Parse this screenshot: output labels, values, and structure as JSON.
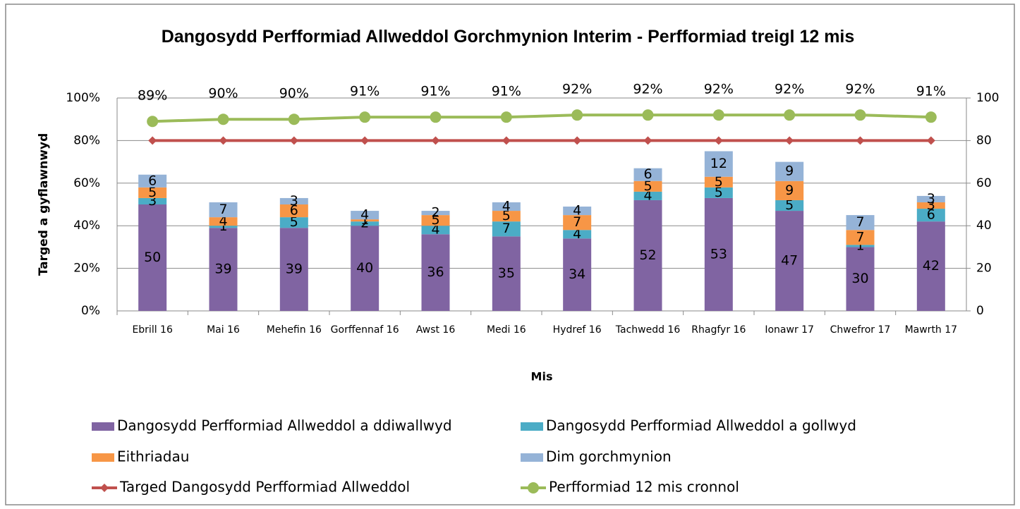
{
  "chart_data": {
    "type": "bar",
    "title": "Dangosydd Perfformiad Allweddol Gorchmynion Interim - Perfformiad treigl 12 mis",
    "y_label": "Targed a gyflawnwyd",
    "x_label": "Mis",
    "stacked": true,
    "grid": true,
    "legend": "bottom",
    "categories": [
      "Ebrill 16",
      "Mai 16",
      "Mehefin 16",
      "Gorffennaf 16",
      "Awst 16",
      "Medi 16",
      "Hydref 16",
      "Tachwedd 16",
      "Rhagfyr 16",
      "Ionawr 17",
      "Chwefror 17",
      "Mawrth 17"
    ],
    "ylim": [
      0,
      100
    ],
    "yticks": [
      {
        "value": 0,
        "label": "0%"
      },
      {
        "value": 20,
        "label": "20%"
      },
      {
        "value": 40,
        "label": "40%"
      },
      {
        "value": 60,
        "label": "60%"
      },
      {
        "value": 80,
        "label": "80%"
      },
      {
        "value": 100,
        "label": "100%"
      }
    ],
    "y2lim": [
      0,
      100
    ],
    "y2ticks": [
      0,
      20,
      40,
      60,
      80,
      100
    ],
    "series": [
      {
        "name": "Dangosydd Perfformiad Allweddol a ddiwallwyd",
        "type": "bar",
        "axis": "y2",
        "color": "#8064a2",
        "values": [
          50,
          39,
          39,
          40,
          36,
          35,
          34,
          52,
          53,
          47,
          30,
          42
        ]
      },
      {
        "name": "Dangosydd Perfformiad Allweddol a gollwyd",
        "type": "bar",
        "axis": "y2",
        "color": "#4bacc6",
        "values": [
          3,
          1,
          5,
          2,
          4,
          7,
          4,
          4,
          5,
          5,
          1,
          6
        ]
      },
      {
        "name": "Eithriadau",
        "type": "bar",
        "axis": "y2",
        "color": "#f79646",
        "values": [
          5,
          4,
          6,
          1,
          5,
          5,
          7,
          5,
          5,
          9,
          7,
          3
        ]
      },
      {
        "name": "Dim gorchmynion",
        "type": "bar",
        "axis": "y2",
        "color": "#95b3d7",
        "values": [
          6,
          7,
          3,
          4,
          2,
          4,
          4,
          6,
          12,
          9,
          7,
          3
        ]
      },
      {
        "name": "Targed Dangosydd Perfformiad Allweddol",
        "type": "line",
        "marker": "diamond",
        "color": "#c0504d",
        "values": [
          80,
          80,
          80,
          80,
          80,
          80,
          80,
          80,
          80,
          80,
          80,
          80
        ]
      },
      {
        "name": "Perfformiad 12 mis cronnol",
        "type": "line",
        "marker": "circle",
        "color": "#9bbb59",
        "values": [
          89,
          90,
          90,
          91,
          91,
          91,
          92,
          92,
          92,
          92,
          92,
          91
        ],
        "value_labels": [
          "89%",
          "90%",
          "90%",
          "91%",
          "91%",
          "91%",
          "92%",
          "92%",
          "92%",
          "92%",
          "92%",
          "91%"
        ]
      }
    ]
  }
}
